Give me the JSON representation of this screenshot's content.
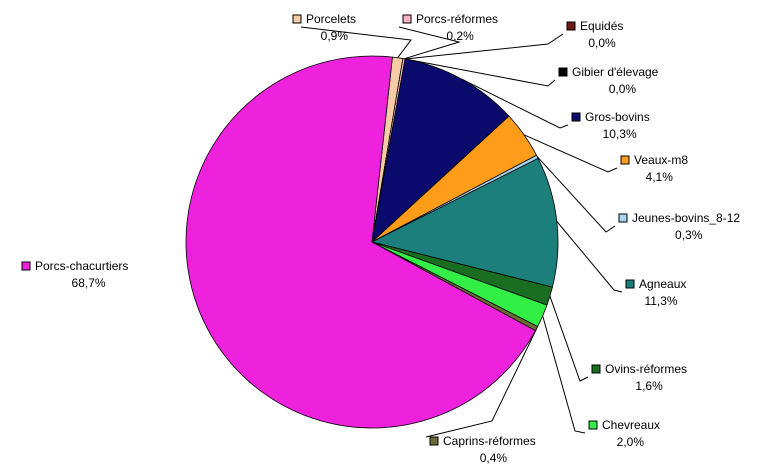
{
  "chart_data": {
    "type": "pie",
    "title": "",
    "slices": [
      {
        "name": "Porcelets",
        "value_label": "0,9%",
        "value": 0.9,
        "color": "#f8cba8"
      },
      {
        "name": "Porcs-réformes",
        "value_label": "0,2%",
        "value": 0.2,
        "color": "#f4b5c0"
      },
      {
        "name": "Equidés",
        "value_label": "0,0%",
        "value": 0.0,
        "color": "#6b1a14"
      },
      {
        "name": "Gibier d'élevage",
        "value_label": "0,0%",
        "value": 0.0,
        "color": "#000000"
      },
      {
        "name": "Gros-bovins",
        "value_label": "10,3%",
        "value": 10.3,
        "color": "#0b0b6e"
      },
      {
        "name": "Veaux-m8",
        "value_label": "4,1%",
        "value": 4.1,
        "color": "#ff9c1a"
      },
      {
        "name": "Jeunes-bovins_8-12",
        "value_label": "0,3%",
        "value": 0.3,
        "color": "#a8d4f0"
      },
      {
        "name": "Agneaux",
        "value_label": "11,3%",
        "value": 11.3,
        "color": "#1c7f7b"
      },
      {
        "name": "Ovins-réformes",
        "value_label": "1,6%",
        "value": 1.6,
        "color": "#1a6e21"
      },
      {
        "name": "Chevreaux",
        "value_label": "2,0%",
        "value": 2.0,
        "color": "#33ee44"
      },
      {
        "name": "Caprins-réformes",
        "value_label": "0,4%",
        "value": 0.4,
        "color": "#6e6a36"
      },
      {
        "name": "Porcs-chacurtiers",
        "value_label": "68,7%",
        "value": 68.7,
        "color": "#ee22dd"
      }
    ]
  }
}
